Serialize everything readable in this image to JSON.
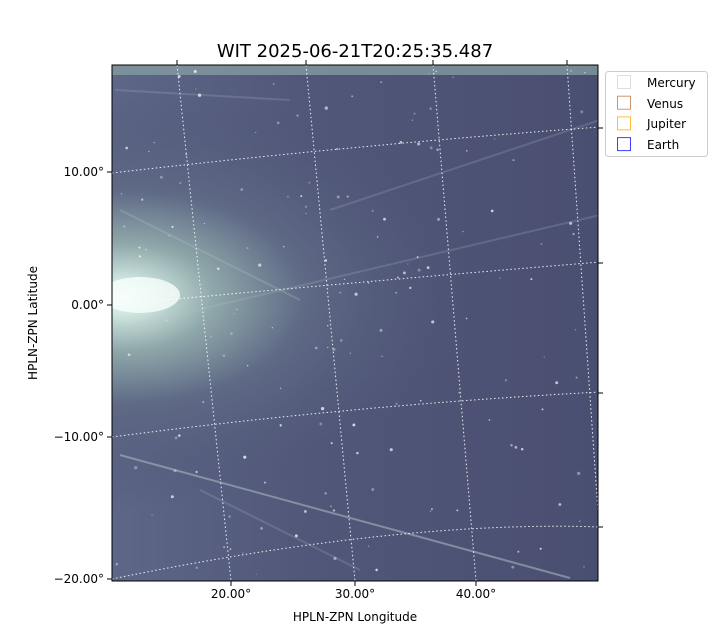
{
  "chart_data": {
    "type": "heatmap",
    "title": "WIT 2025-06-21T20:25:35.487",
    "xlabel": "HPLN-ZPN Longitude",
    "ylabel": "HPLN-ZPN Latitude",
    "x_ticks": [
      "20.00°",
      "30.00°",
      "40.00°"
    ],
    "y_ticks": [
      "10.00°",
      "0.00°",
      "−10.00°",
      "−20.00°"
    ],
    "grid": true,
    "colormap": "bone",
    "legend": {
      "placement": "outside-top-right",
      "entries": [
        {
          "name": "Mercury",
          "color": "#d3d3d3"
        },
        {
          "name": "Venus",
          "color": "#c0703a"
        },
        {
          "name": "Jupiter",
          "color": "#ffa500"
        },
        {
          "name": "Earth",
          "color": "#0000ff"
        }
      ]
    }
  }
}
